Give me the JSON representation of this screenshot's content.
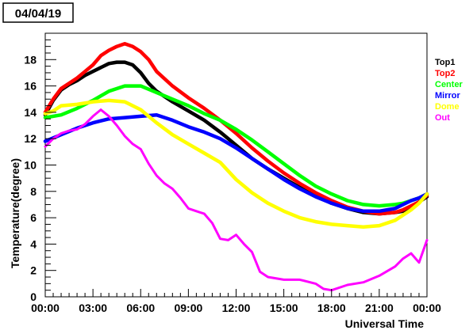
{
  "chart_data": {
    "type": "line",
    "title": "04/04/19",
    "xlabel": "Universal Time",
    "ylabel": "Temperature(degree)",
    "xlim": [
      0,
      24
    ],
    "ylim": [
      0,
      20
    ],
    "x_ticks": [
      "00:00",
      "03:00",
      "06:00",
      "09:00",
      "12:00",
      "15:00",
      "18:00",
      "21:00",
      "00:00"
    ],
    "y_ticks": [
      "0",
      "2",
      "4",
      "6",
      "8",
      "10",
      "12",
      "14",
      "16",
      "18"
    ],
    "legend_position": "right",
    "grid": false,
    "series": [
      {
        "name": "Top1",
        "color": "#000000",
        "x": [
          0,
          0.5,
          1,
          1.5,
          2,
          2.5,
          3,
          3.5,
          4,
          4.5,
          5,
          5.5,
          6,
          6.5,
          7,
          8,
          9,
          10,
          11,
          12,
          13,
          14,
          15,
          16,
          17,
          18,
          19,
          20,
          21,
          22,
          22.5,
          23,
          23.5,
          24
        ],
        "y": [
          13.8,
          14.9,
          15.7,
          16.1,
          16.4,
          16.8,
          17.1,
          17.4,
          17.7,
          17.8,
          17.8,
          17.6,
          17.0,
          16.2,
          15.6,
          14.8,
          14.1,
          13.4,
          12.5,
          11.5,
          10.5,
          9.7,
          9.0,
          8.3,
          7.7,
          7.1,
          6.7,
          6.4,
          6.3,
          6.4,
          6.5,
          6.8,
          7.2,
          7.6
        ]
      },
      {
        "name": "Top2",
        "color": "#ff0000",
        "x": [
          0,
          0.5,
          1,
          1.5,
          2,
          2.5,
          3,
          3.5,
          4,
          4.5,
          5,
          5.5,
          6,
          6.5,
          7,
          8,
          9,
          10,
          11,
          12,
          13,
          14,
          15,
          16,
          17,
          18,
          19,
          20,
          21,
          22,
          22.5,
          23,
          23.5,
          24
        ],
        "y": [
          14.0,
          15.0,
          15.8,
          16.2,
          16.6,
          17.1,
          17.6,
          18.3,
          18.7,
          19.0,
          19.2,
          19.0,
          18.6,
          18.0,
          17.1,
          16.0,
          15.1,
          14.3,
          13.4,
          12.4,
          11.3,
          10.3,
          9.4,
          8.6,
          7.9,
          7.3,
          6.8,
          6.5,
          6.3,
          6.4,
          6.6,
          6.9,
          7.2,
          7.7
        ]
      },
      {
        "name": "Center",
        "color": "#00ff00",
        "x": [
          0,
          1,
          2,
          3,
          4,
          5,
          6,
          7,
          8,
          9,
          10,
          11,
          12,
          13,
          14,
          15,
          16,
          17,
          18,
          19,
          20,
          21,
          22,
          22.5,
          23,
          23.5,
          24
        ],
        "y": [
          13.6,
          13.8,
          14.3,
          14.9,
          15.6,
          16.0,
          16.0,
          15.5,
          15.0,
          14.5,
          13.9,
          13.4,
          12.7,
          11.9,
          11.0,
          10.1,
          9.2,
          8.4,
          7.8,
          7.3,
          7.0,
          6.9,
          7.0,
          7.1,
          7.3,
          7.5,
          7.8
        ]
      },
      {
        "name": "Mirror",
        "color": "#0000ff",
        "x": [
          0,
          1,
          2,
          3,
          4,
          5,
          6,
          7,
          8,
          9,
          10,
          11,
          12,
          13,
          14,
          15,
          16,
          17,
          18,
          19,
          20,
          21,
          22,
          22.5,
          23,
          23.5,
          24
        ],
        "y": [
          11.8,
          12.3,
          12.8,
          13.2,
          13.5,
          13.6,
          13.7,
          13.8,
          13.4,
          12.9,
          12.5,
          12.0,
          11.3,
          10.5,
          9.7,
          8.9,
          8.2,
          7.6,
          7.1,
          6.7,
          6.5,
          6.5,
          6.7,
          7.0,
          7.3,
          7.5,
          7.8
        ]
      },
      {
        "name": "Dome",
        "color": "#ffff00",
        "x": [
          0,
          0.5,
          1,
          2,
          3,
          4,
          5,
          6,
          7,
          8,
          9,
          10,
          11,
          12,
          13,
          14,
          15,
          16,
          17,
          18,
          19,
          20,
          21,
          22,
          23,
          23.5,
          24
        ],
        "y": [
          13.9,
          14.1,
          14.5,
          14.6,
          14.8,
          14.9,
          14.8,
          14.2,
          13.2,
          12.3,
          11.6,
          10.9,
          10.2,
          8.9,
          7.9,
          7.1,
          6.5,
          6.0,
          5.7,
          5.5,
          5.4,
          5.3,
          5.4,
          5.8,
          6.6,
          7.1,
          7.8
        ]
      },
      {
        "name": "Out",
        "color": "#ff00ff",
        "x": [
          0,
          0.5,
          1,
          1.5,
          2,
          2.5,
          3,
          3.5,
          4,
          4.5,
          5,
          5.5,
          6,
          6.5,
          7,
          7.5,
          8,
          8.5,
          9,
          9.5,
          10,
          10.5,
          11,
          11.5,
          12,
          12.5,
          13,
          13.5,
          14,
          15,
          16,
          17,
          17.5,
          18,
          19,
          20,
          21,
          22,
          22.5,
          23,
          23.5,
          24
        ],
        "y": [
          11.4,
          12.0,
          12.4,
          12.6,
          12.7,
          13.1,
          13.7,
          14.2,
          13.7,
          13.0,
          12.2,
          11.6,
          11.2,
          10.1,
          9.2,
          8.6,
          8.2,
          7.5,
          6.7,
          6.5,
          6.3,
          5.6,
          4.4,
          4.3,
          4.7,
          4.0,
          3.4,
          1.9,
          1.5,
          1.3,
          1.3,
          1.0,
          0.6,
          0.5,
          0.9,
          1.1,
          1.6,
          2.3,
          2.9,
          3.3,
          2.6,
          4.3
        ]
      }
    ]
  }
}
